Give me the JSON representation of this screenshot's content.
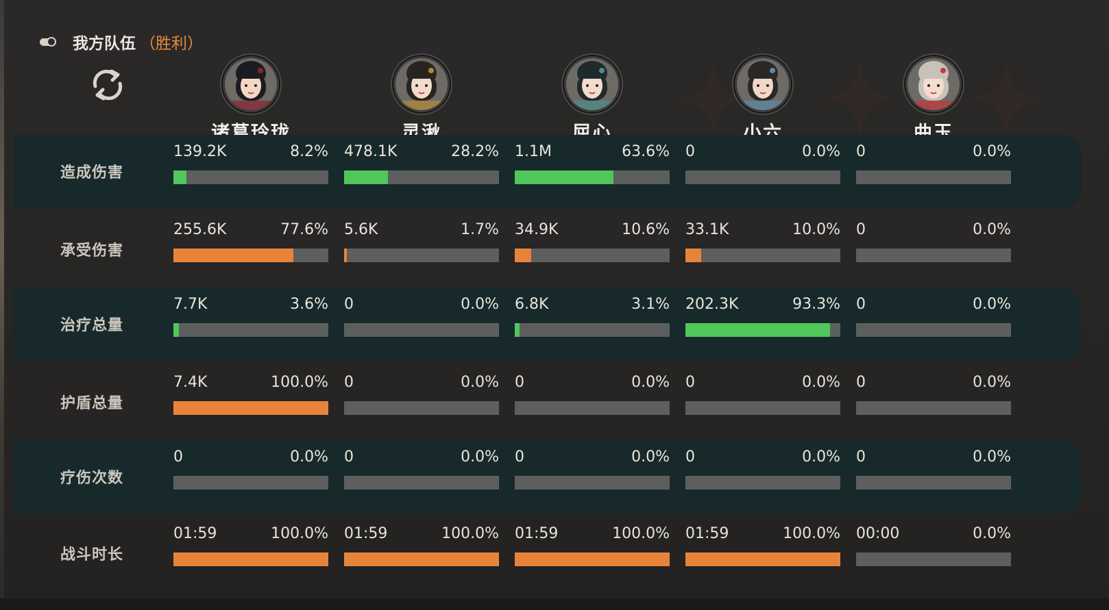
{
  "header": {
    "team_title": "我方队伍",
    "result": "（胜利）",
    "toggle_icon": "toggle-icon",
    "refresh_icon": "refresh-icon"
  },
  "colors": {
    "damage_fill": "#4fc75a",
    "orange_fill": "#e8843a",
    "bar_bg": "#5c5f5e",
    "dark_row": "#17292a",
    "result_text": "#e58b3c"
  },
  "characters": [
    {
      "name": "诸葛玲珑"
    },
    {
      "name": "灵湫"
    },
    {
      "name": "屈心"
    },
    {
      "name": "小六"
    },
    {
      "name": "曲玉"
    }
  ],
  "stats": [
    {
      "label": "造成伤害",
      "color": "green",
      "cells": [
        {
          "value": "139.2K",
          "percent": "8.2%",
          "fraction": 0.082
        },
        {
          "value": "478.1K",
          "percent": "28.2%",
          "fraction": 0.282
        },
        {
          "value": "1.1M",
          "percent": "63.6%",
          "fraction": 0.636
        },
        {
          "value": "0",
          "percent": "0.0%",
          "fraction": 0
        },
        {
          "value": "0",
          "percent": "0.0%",
          "fraction": 0
        }
      ]
    },
    {
      "label": "承受伤害",
      "color": "orange",
      "cells": [
        {
          "value": "255.6K",
          "percent": "77.6%",
          "fraction": 0.776
        },
        {
          "value": "5.6K",
          "percent": "1.7%",
          "fraction": 0.017
        },
        {
          "value": "34.9K",
          "percent": "10.6%",
          "fraction": 0.106
        },
        {
          "value": "33.1K",
          "percent": "10.0%",
          "fraction": 0.1
        },
        {
          "value": "0",
          "percent": "0.0%",
          "fraction": 0
        }
      ]
    },
    {
      "label": "治疗总量",
      "color": "green",
      "cells": [
        {
          "value": "7.7K",
          "percent": "3.6%",
          "fraction": 0.036
        },
        {
          "value": "0",
          "percent": "0.0%",
          "fraction": 0
        },
        {
          "value": "6.8K",
          "percent": "3.1%",
          "fraction": 0.031
        },
        {
          "value": "202.3K",
          "percent": "93.3%",
          "fraction": 0.933
        },
        {
          "value": "0",
          "percent": "0.0%",
          "fraction": 0
        }
      ]
    },
    {
      "label": "护盾总量",
      "color": "orange",
      "cells": [
        {
          "value": "7.4K",
          "percent": "100.0%",
          "fraction": 1.0
        },
        {
          "value": "0",
          "percent": "0.0%",
          "fraction": 0
        },
        {
          "value": "0",
          "percent": "0.0%",
          "fraction": 0
        },
        {
          "value": "0",
          "percent": "0.0%",
          "fraction": 0
        },
        {
          "value": "0",
          "percent": "0.0%",
          "fraction": 0
        }
      ]
    },
    {
      "label": "疗伤次数",
      "color": "green",
      "cells": [
        {
          "value": "0",
          "percent": "0.0%",
          "fraction": 0
        },
        {
          "value": "0",
          "percent": "0.0%",
          "fraction": 0
        },
        {
          "value": "0",
          "percent": "0.0%",
          "fraction": 0
        },
        {
          "value": "0",
          "percent": "0.0%",
          "fraction": 0
        },
        {
          "value": "0",
          "percent": "0.0%",
          "fraction": 0
        }
      ]
    },
    {
      "label": "战斗时长",
      "color": "orange",
      "cells": [
        {
          "value": "01:59",
          "percent": "100.0%",
          "fraction": 1.0
        },
        {
          "value": "01:59",
          "percent": "100.0%",
          "fraction": 1.0
        },
        {
          "value": "01:59",
          "percent": "100.0%",
          "fraction": 1.0
        },
        {
          "value": "01:59",
          "percent": "100.0%",
          "fraction": 1.0
        },
        {
          "value": "00:00",
          "percent": "0.0%",
          "fraction": 0
        }
      ]
    }
  ]
}
